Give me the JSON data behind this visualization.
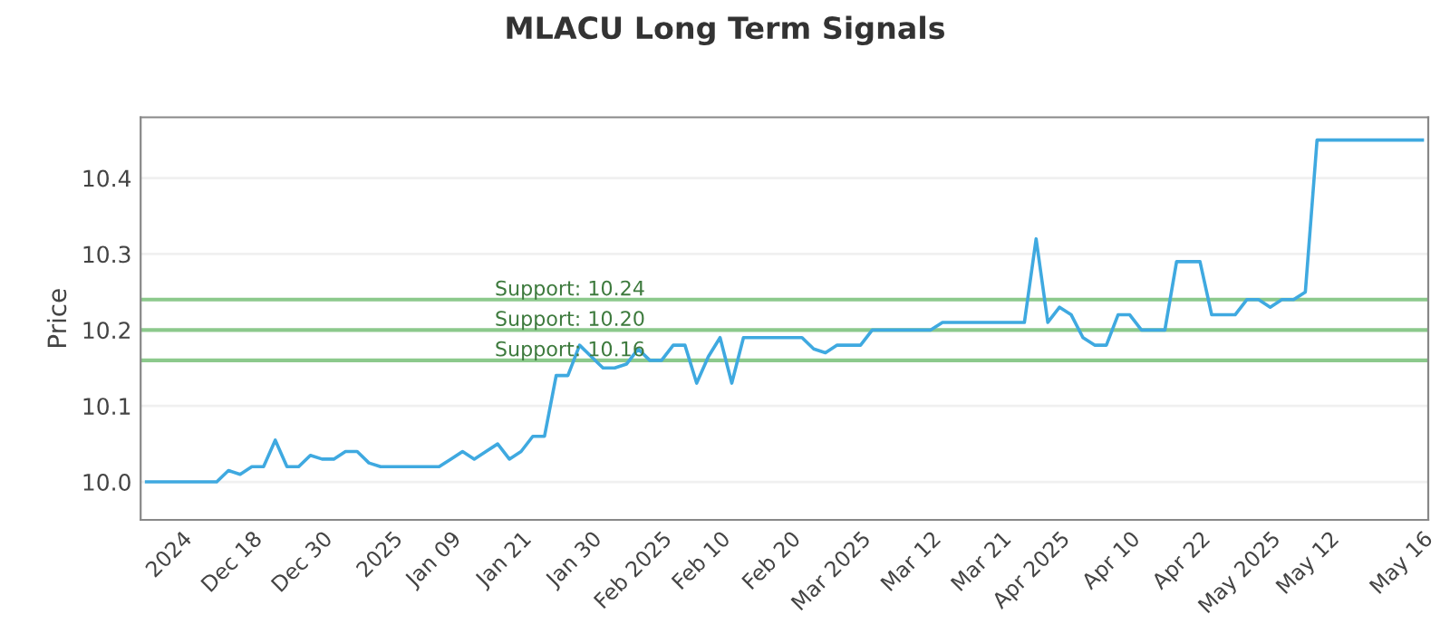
{
  "chart_data": {
    "type": "line",
    "title": "MLACU Long Term Signals",
    "ylabel": "Price",
    "categories": [
      null,
      null,
      null,
      "2024",
      null,
      null,
      null,
      null,
      null,
      "Dec 18",
      null,
      null,
      null,
      null,
      null,
      "Dec 30",
      null,
      null,
      null,
      null,
      null,
      "2025",
      null,
      null,
      null,
      null,
      "Jan 09",
      null,
      null,
      null,
      null,
      null,
      "Jan 21",
      null,
      null,
      null,
      null,
      null,
      "Jan 30",
      null,
      null,
      null,
      null,
      null,
      "Feb 2025",
      null,
      null,
      null,
      null,
      "Feb 10",
      null,
      null,
      null,
      null,
      null,
      "Feb 20",
      null,
      null,
      null,
      null,
      null,
      "Mar 2025",
      null,
      null,
      null,
      null,
      null,
      "Mar 12",
      null,
      null,
      null,
      null,
      null,
      "Mar 21",
      null,
      null,
      null,
      null,
      "Apr 2025",
      null,
      null,
      null,
      null,
      null,
      "Apr 10",
      null,
      null,
      null,
      null,
      null,
      "Apr 22",
      null,
      null,
      null,
      null,
      null,
      "May 2025",
      null,
      null,
      null,
      null,
      "May 12",
      null,
      null,
      null,
      null,
      null,
      null,
      null,
      "May 16"
    ],
    "series": [
      {
        "color": "#3fa9e0",
        "values": [
          10.0,
          10.0,
          10.0,
          10.0,
          10.0,
          10.0,
          10.0,
          10.015,
          10.01,
          10.02,
          10.02,
          10.055,
          10.02,
          10.02,
          10.035,
          10.03,
          10.03,
          10.04,
          10.04,
          10.025,
          10.02,
          10.02,
          10.02,
          10.02,
          10.02,
          10.02,
          10.03,
          10.04,
          10.03,
          10.04,
          10.05,
          10.03,
          10.04,
          10.06,
          10.06,
          10.14,
          10.14,
          10.18,
          10.165,
          10.15,
          10.15,
          10.155,
          10.175,
          10.16,
          10.16,
          10.18,
          10.18,
          10.13,
          10.165,
          10.19,
          10.13,
          10.19,
          10.19,
          10.19,
          10.19,
          10.19,
          10.19,
          10.175,
          10.17,
          10.18,
          10.18,
          10.18,
          10.2,
          10.2,
          10.2,
          10.2,
          10.2,
          10.2,
          10.21,
          10.21,
          10.21,
          10.21,
          10.21,
          10.21,
          10.21,
          10.21,
          10.32,
          10.21,
          10.23,
          10.22,
          10.19,
          10.18,
          10.18,
          10.22,
          10.22,
          10.2,
          10.2,
          10.2,
          10.29,
          10.29,
          10.29,
          10.22,
          10.22,
          10.22,
          10.24,
          10.24,
          10.23,
          10.24,
          10.24,
          10.25,
          10.45,
          10.45,
          10.45,
          10.45,
          10.45,
          10.45,
          10.45,
          10.45,
          10.45,
          10.45
        ]
      }
    ],
    "ylim": [
      9.95,
      10.48
    ],
    "yticks": [
      {
        "value": 10.0,
        "label": "10.0"
      },
      {
        "value": 10.1,
        "label": "10.1"
      },
      {
        "value": 10.2,
        "label": "10.2"
      },
      {
        "value": 10.3,
        "label": "10.3"
      },
      {
        "value": 10.4,
        "label": "10.4"
      }
    ],
    "grid": "y",
    "legend": false,
    "marker": "none",
    "line_style": "solid",
    "ref_lines": [
      {
        "axis": "y",
        "value": 10.24,
        "label": "Support: 10.24",
        "color": "#8cc98c"
      },
      {
        "axis": "y",
        "value": 10.2,
        "label": "Support: 10.20",
        "color": "#8cc98c"
      },
      {
        "axis": "y",
        "value": 10.16,
        "label": "Support: 10.16",
        "color": "#8cc98c"
      }
    ]
  }
}
